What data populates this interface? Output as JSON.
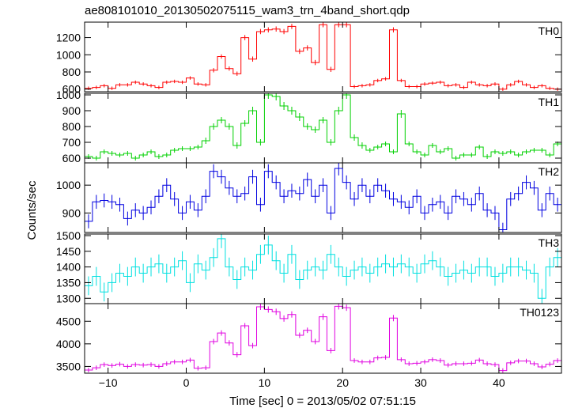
{
  "chart_data": {
    "type": "line",
    "title": "ae808101010_20130502075115_wam3_trn_4band_short.qdp",
    "xlabel": "Time [sec] 0 = 2013/05/02 07:51:15",
    "ylabel": "Counts/sec",
    "xlim": [
      -13.0,
      48.0
    ],
    "x_ticks": [
      -10,
      0,
      10,
      20,
      30,
      40
    ],
    "x_tick_labels": [
      "−10",
      "0",
      "10",
      "20",
      "30",
      "40"
    ],
    "bin_width": 1.0,
    "x": [
      -12.5,
      -11.5,
      -10.5,
      -9.5,
      -8.5,
      -7.5,
      -6.5,
      -5.5,
      -4.5,
      -3.5,
      -2.5,
      -1.5,
      -0.5,
      0.5,
      1.5,
      2.5,
      3.5,
      4.5,
      5.5,
      6.5,
      7.5,
      8.5,
      9.5,
      10.5,
      11.5,
      12.5,
      13.5,
      14.5,
      15.5,
      16.5,
      17.5,
      18.5,
      19.5,
      20.5,
      21.5,
      22.5,
      23.5,
      24.5,
      25.5,
      26.5,
      27.5,
      28.5,
      29.5,
      30.5,
      31.5,
      32.5,
      33.5,
      34.5,
      35.5,
      36.5,
      37.5,
      38.5,
      39.5,
      40.5,
      41.5,
      42.5,
      43.5,
      44.5,
      45.5,
      46.5,
      47.5
    ],
    "panels": [
      {
        "name": "TH0",
        "color": "#ff0000",
        "ylim": [
          570,
          1380
        ],
        "y_ticks": [
          600,
          800,
          1000,
          1200
        ],
        "y_tick_labels": [
          "600",
          "800",
          "1000",
          "1200"
        ],
        "values": [
          610,
          620,
          640,
          610,
          650,
          650,
          680,
          660,
          640,
          620,
          680,
          690,
          680,
          730,
          660,
          650,
          820,
          980,
          840,
          780,
          1200,
          950,
          1270,
          1290,
          1300,
          1270,
          1330,
          1040,
          1080,
          910,
          1350,
          830,
          1350,
          1350,
          630,
          640,
          650,
          700,
          720,
          1290,
          700,
          630,
          630,
          660,
          670,
          680,
          640,
          650,
          620,
          680,
          650,
          640,
          660,
          600,
          650,
          690,
          650,
          620,
          640,
          610,
          600
        ],
        "err": [
          20,
          20,
          20,
          20,
          20,
          20,
          20,
          20,
          20,
          20,
          20,
          20,
          20,
          20,
          20,
          20,
          25,
          25,
          25,
          25,
          30,
          30,
          30,
          30,
          30,
          30,
          30,
          30,
          30,
          30,
          30,
          30,
          30,
          30,
          20,
          20,
          20,
          20,
          20,
          30,
          20,
          20,
          20,
          20,
          20,
          20,
          20,
          20,
          20,
          20,
          20,
          20,
          20,
          20,
          20,
          20,
          20,
          20,
          20,
          20,
          20
        ]
      },
      {
        "name": "TH1",
        "color": "#00d000",
        "ylim": [
          570,
          1010
        ],
        "y_ticks": [
          600,
          700,
          800,
          900,
          1000
        ],
        "y_tick_labels": [
          "600",
          "700",
          "800",
          "900",
          "1000"
        ],
        "values": [
          610,
          600,
          640,
          630,
          620,
          630,
          600,
          620,
          640,
          610,
          620,
          650,
          660,
          660,
          670,
          710,
          800,
          840,
          800,
          680,
          820,
          900,
          700,
          1000,
          990,
          930,
          900,
          860,
          800,
          780,
          840,
          700,
          900,
          1000,
          730,
          680,
          650,
          670,
          690,
          640,
          880,
          690,
          640,
          620,
          680,
          640,
          660,
          600,
          620,
          620,
          670,
          610,
          640,
          630,
          640,
          620,
          640,
          650,
          650,
          620,
          690
        ],
        "err": [
          15,
          15,
          15,
          15,
          15,
          15,
          15,
          15,
          15,
          15,
          15,
          15,
          15,
          15,
          15,
          20,
          20,
          20,
          20,
          20,
          20,
          25,
          20,
          25,
          25,
          25,
          25,
          25,
          20,
          20,
          20,
          20,
          25,
          25,
          20,
          20,
          15,
          15,
          15,
          15,
          25,
          15,
          15,
          15,
          15,
          15,
          15,
          15,
          15,
          15,
          15,
          15,
          15,
          15,
          15,
          15,
          15,
          15,
          15,
          15,
          15
        ]
      },
      {
        "name": "TH2",
        "color": "#0000e0",
        "ylim": [
          830,
          1080
        ],
        "y_ticks": [
          900,
          1000
        ],
        "y_tick_labels": [
          "900",
          "1000"
        ],
        "values": [
          870,
          940,
          945,
          940,
          930,
          880,
          910,
          900,
          920,
          960,
          1000,
          950,
          900,
          940,
          910,
          960,
          1050,
          1030,
          990,
          960,
          970,
          1030,
          930,
          1050,
          1010,
          960,
          980,
          970,
          1020,
          960,
          1000,
          900,
          1060,
          1010,
          950,
          1000,
          960,
          1000,
          980,
          950,
          940,
          920,
          960,
          900,
          930,
          940,
          900,
          960,
          950,
          930,
          970,
          910,
          900,
          840,
          950,
          970,
          1010,
          990,
          910,
          970,
          930
        ],
        "err": [
          25,
          25,
          25,
          25,
          25,
          25,
          25,
          25,
          25,
          25,
          25,
          25,
          25,
          25,
          25,
          25,
          25,
          25,
          25,
          25,
          25,
          25,
          25,
          25,
          25,
          25,
          25,
          25,
          25,
          25,
          25,
          25,
          25,
          25,
          25,
          25,
          25,
          25,
          25,
          25,
          25,
          25,
          25,
          25,
          25,
          25,
          25,
          25,
          25,
          25,
          25,
          25,
          25,
          25,
          25,
          25,
          25,
          25,
          25,
          25,
          25
        ]
      },
      {
        "name": "TH3",
        "color": "#00e0e0",
        "ylim": [
          1283,
          1505
        ],
        "y_ticks": [
          1300,
          1350,
          1400,
          1450,
          1500
        ],
        "y_tick_labels": [
          "1300",
          "1350",
          "1400",
          "1450",
          "1500"
        ],
        "values": [
          1340,
          1370,
          1320,
          1350,
          1380,
          1370,
          1400,
          1380,
          1400,
          1410,
          1380,
          1400,
          1420,
          1350,
          1410,
          1390,
          1430,
          1490,
          1400,
          1360,
          1400,
          1390,
          1440,
          1470,
          1420,
          1380,
          1440,
          1360,
          1390,
          1400,
          1390,
          1440,
          1400,
          1370,
          1390,
          1400,
          1380,
          1400,
          1410,
          1400,
          1410,
          1400,
          1380,
          1410,
          1420,
          1400,
          1370,
          1380,
          1390,
          1380,
          1400,
          1400,
          1370,
          1380,
          1400,
          1400,
          1390,
          1380,
          1300,
          1400,
          1430
        ],
        "err": [
          30,
          30,
          30,
          30,
          30,
          30,
          30,
          30,
          30,
          30,
          30,
          30,
          30,
          30,
          30,
          30,
          30,
          30,
          30,
          30,
          30,
          30,
          30,
          30,
          30,
          30,
          30,
          30,
          30,
          30,
          30,
          30,
          30,
          30,
          30,
          30,
          30,
          30,
          30,
          30,
          30,
          30,
          30,
          30,
          30,
          30,
          30,
          30,
          30,
          30,
          30,
          30,
          30,
          30,
          30,
          30,
          30,
          30,
          30,
          30,
          30
        ]
      },
      {
        "name": "TH0123",
        "color": "#e000e0",
        "ylim": [
          3350,
          4890
        ],
        "y_ticks": [
          3500,
          4000,
          4500
        ],
        "y_tick_labels": [
          "3500",
          "4000",
          "4500"
        ],
        "values": [
          3420,
          3470,
          3540,
          3520,
          3550,
          3500,
          3540,
          3530,
          3540,
          3500,
          3560,
          3600,
          3600,
          3640,
          3460,
          3470,
          4050,
          4240,
          4020,
          3760,
          4400,
          3960,
          4820,
          4760,
          4710,
          4560,
          4650,
          4190,
          4300,
          4050,
          4600,
          3850,
          4830,
          4800,
          3630,
          3600,
          3600,
          3690,
          3700,
          4570,
          3650,
          3560,
          3570,
          3600,
          3650,
          3630,
          3530,
          3560,
          3560,
          3570,
          3640,
          3560,
          3540,
          3410,
          3580,
          3620,
          3620,
          3560,
          3490,
          3550,
          3630
        ],
        "err": [
          50,
          50,
          50,
          50,
          50,
          50,
          50,
          50,
          50,
          50,
          50,
          50,
          50,
          50,
          50,
          50,
          60,
          60,
          60,
          60,
          60,
          60,
          70,
          70,
          70,
          70,
          70,
          60,
          60,
          60,
          70,
          60,
          70,
          70,
          50,
          50,
          50,
          50,
          50,
          70,
          50,
          50,
          50,
          50,
          50,
          50,
          50,
          50,
          50,
          50,
          50,
          50,
          50,
          50,
          50,
          50,
          50,
          50,
          50,
          50,
          50
        ]
      }
    ]
  }
}
